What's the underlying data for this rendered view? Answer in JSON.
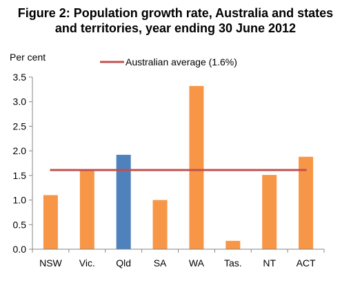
{
  "figure": {
    "title_line1": "Figure 2: Population growth rate, Australia and states",
    "title_line2": "and territories, year ending 30 June 2012"
  },
  "chart_data": {
    "type": "bar",
    "title": "Figure 2: Population growth rate, Australia and states and territories, year ending 30 June 2012",
    "ylabel": "Per cent",
    "xlabel": "",
    "categories": [
      "NSW",
      "Vic.",
      "Qld",
      "SA",
      "WA",
      "Tas.",
      "NT",
      "ACT"
    ],
    "values": [
      1.1,
      1.6,
      1.92,
      1.0,
      3.32,
      0.17,
      1.51,
      1.88
    ],
    "highlight_category": "Qld",
    "ylim": [
      0,
      3.5
    ],
    "yticks": [
      "0.0",
      "0.5",
      "1.0",
      "1.5",
      "2.0",
      "2.5",
      "3.0",
      "3.5"
    ],
    "grid": false,
    "colors": {
      "bar": "#f79646",
      "highlight_bar": "#4f81bd",
      "reference_line": "#c0504d"
    },
    "reference_line": {
      "name": "Australian average (1.6%)",
      "value": 1.61
    },
    "legend_position": "top-center"
  }
}
